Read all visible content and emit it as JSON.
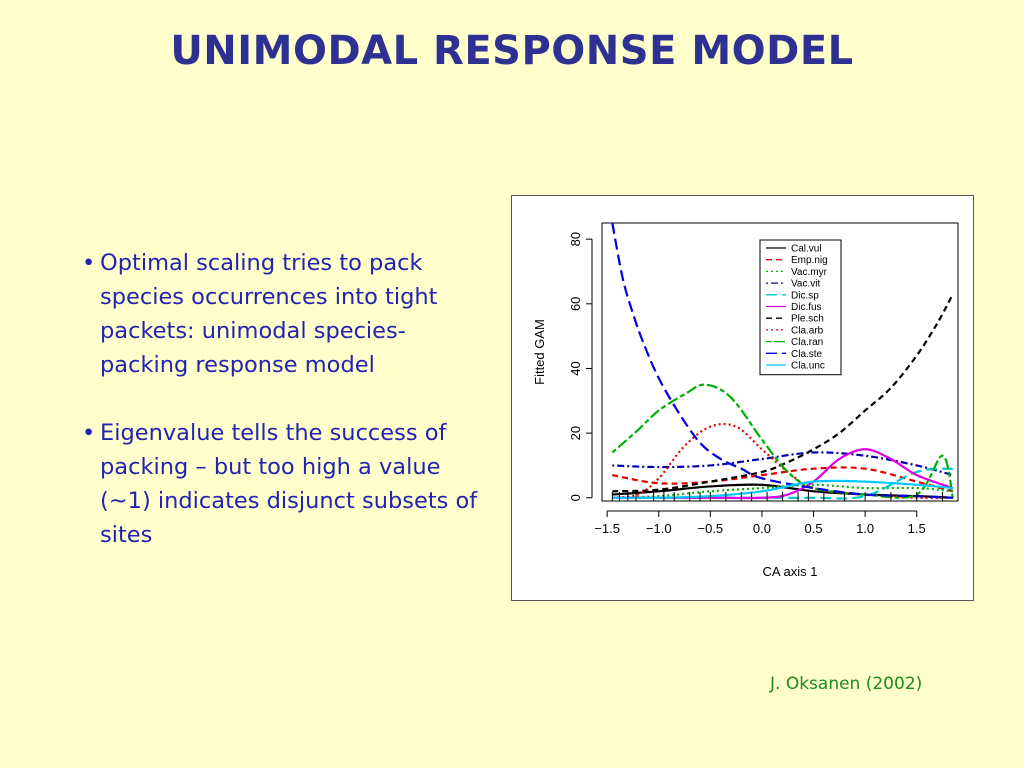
{
  "slide": {
    "title": "UNIMODAL RESPONSE MODEL",
    "bullets": [
      "Optimal scaling tries to pack species occurrences into tight packets: unimodal species-packing response model",
      "Eigenvalue tells the success of packing – but too high a value (~1) indicates disjunct subsets of sites"
    ],
    "citation": "J. Oksanen (2002)"
  },
  "chart_data": {
    "type": "line",
    "title": "",
    "xlabel": "CA axis 1",
    "ylabel": "Fitted GAM",
    "xlim": [
      -1.55,
      1.9
    ],
    "ylim": [
      -1,
      85
    ],
    "x_ticks": [
      -1.5,
      -1.0,
      -0.5,
      0.0,
      0.5,
      1.0,
      1.5
    ],
    "x_tick_labels": [
      "−1.5",
      "−1.0",
      "−0.5",
      "0.0",
      "0.5",
      "1.0",
      "1.5"
    ],
    "y_ticks": [
      0,
      20,
      40,
      60,
      80
    ],
    "y_tick_labels": [
      "0",
      "20",
      "40",
      "60",
      "80"
    ],
    "legend_position": "top-right",
    "rug": [
      -1.45,
      -1.38,
      -1.3,
      -1.22,
      -1.05,
      -0.95,
      -0.85,
      -0.7,
      -0.6,
      -0.5,
      -0.35,
      -0.2,
      -0.1,
      0.05,
      0.2,
      0.35,
      0.45,
      0.6,
      0.8,
      1.0,
      1.25,
      1.5,
      1.75
    ],
    "series": [
      {
        "name": "Cal.vul",
        "color": "#000000",
        "dash": "solid",
        "x": [
          -1.45,
          -1.0,
          -0.5,
          0.0,
          0.5,
          1.0,
          1.5,
          1.85
        ],
        "y": [
          1,
          2,
          3.5,
          4,
          2,
          1,
          0.5,
          0
        ]
      },
      {
        "name": "Emp.nig",
        "color": "#e00000",
        "dash": "dashed",
        "x": [
          -1.45,
          -1.0,
          -0.5,
          0.0,
          0.5,
          1.0,
          1.5,
          1.85
        ],
        "y": [
          7,
          4.5,
          5,
          7,
          9,
          9,
          5,
          2
        ]
      },
      {
        "name": "Vac.myr",
        "color": "#00b000",
        "dash": "dotted",
        "x": [
          -1.45,
          -1.0,
          -0.5,
          0.0,
          0.5,
          1.0,
          1.5,
          1.85
        ],
        "y": [
          0,
          0.5,
          2,
          3,
          4,
          3,
          3,
          2
        ]
      },
      {
        "name": "Vac.vit",
        "color": "#0000b0",
        "dash": "dotdash",
        "x": [
          -1.45,
          -1.0,
          -0.5,
          0.0,
          0.5,
          1.0,
          1.5,
          1.85
        ],
        "y": [
          10,
          9.5,
          10,
          12,
          14,
          13,
          10,
          7
        ]
      },
      {
        "name": "Dic.sp",
        "color": "#00c8c8",
        "dash": "longdash",
        "x": [
          -1.45,
          -1.0,
          -0.5,
          0.0,
          0.5,
          1.0,
          1.5,
          1.85
        ],
        "y": [
          0,
          0,
          0,
          0,
          0,
          0.5,
          8,
          9
        ]
      },
      {
        "name": "Dic.fus",
        "color": "#e000e0",
        "dash": "solid",
        "x": [
          -1.45,
          -1.0,
          -0.5,
          0.0,
          0.25,
          0.5,
          0.75,
          1.0,
          1.25,
          1.5,
          1.85
        ],
        "y": [
          0,
          0,
          0,
          0,
          1,
          5,
          12,
          15,
          12,
          7,
          3
        ]
      },
      {
        "name": "Ple.sch",
        "color": "#000000",
        "dash": "dashed",
        "x": [
          -1.45,
          -1.0,
          -0.5,
          0.0,
          0.25,
          0.5,
          0.75,
          1.0,
          1.25,
          1.5,
          1.7,
          1.85
        ],
        "y": [
          2,
          2.5,
          5,
          8,
          11,
          15,
          20,
          27,
          34,
          44,
          54,
          63
        ]
      },
      {
        "name": "Cla.arb",
        "color": "#e00000",
        "dash": "dotted",
        "x": [
          -1.45,
          -1.2,
          -1.0,
          -0.75,
          -0.5,
          -0.25,
          0.0,
          0.25,
          0.5,
          1.0,
          1.5,
          1.85
        ],
        "y": [
          0,
          1,
          6,
          16,
          22,
          22,
          15,
          8,
          3,
          1,
          0,
          0
        ]
      },
      {
        "name": "Cla.ran",
        "color": "#00b000",
        "dash": "twodash",
        "x": [
          -1.45,
          -1.2,
          -1.0,
          -0.75,
          -0.55,
          -0.3,
          0.0,
          0.25,
          0.5,
          1.0,
          1.5,
          1.75,
          1.85
        ],
        "y": [
          14,
          21,
          27,
          32,
          35,
          31,
          18,
          8,
          3,
          1,
          1,
          13,
          0
        ]
      },
      {
        "name": "Cla.ste",
        "color": "#0000e0",
        "dash": "longdash",
        "x": [
          -1.45,
          -1.35,
          -1.25,
          -1.15,
          -1.0,
          -0.8,
          -0.6,
          -0.4,
          -0.2,
          0.0,
          0.5,
          1.0,
          1.5,
          1.85
        ],
        "y": [
          85,
          68,
          57,
          48,
          37,
          26,
          17,
          12,
          9,
          6,
          3,
          1,
          0.5,
          0
        ]
      },
      {
        "name": "Cla.unc",
        "color": "#00c8ff",
        "dash": "solid",
        "x": [
          -1.45,
          -1.0,
          -0.5,
          0.0,
          0.5,
          1.0,
          1.5,
          1.85
        ],
        "y": [
          0,
          0,
          0.5,
          2,
          5,
          5,
          4,
          3
        ]
      }
    ]
  }
}
